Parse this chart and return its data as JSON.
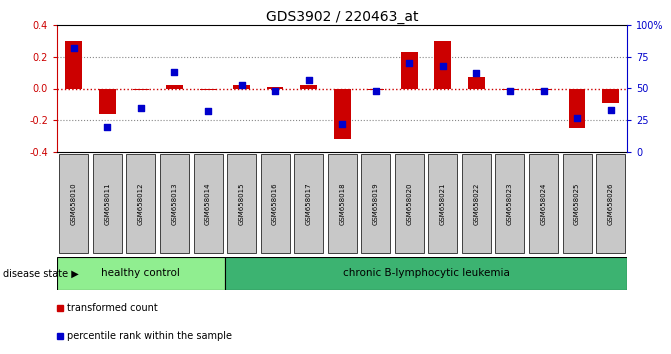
{
  "title": "GDS3902 / 220463_at",
  "samples": [
    "GSM658010",
    "GSM658011",
    "GSM658012",
    "GSM658013",
    "GSM658014",
    "GSM658015",
    "GSM658016",
    "GSM658017",
    "GSM658018",
    "GSM658019",
    "GSM658020",
    "GSM658021",
    "GSM658022",
    "GSM658023",
    "GSM658024",
    "GSM658025",
    "GSM658026"
  ],
  "red_bars": [
    0.3,
    -0.16,
    -0.01,
    0.02,
    -0.01,
    0.02,
    0.01,
    0.02,
    -0.32,
    -0.01,
    0.23,
    0.3,
    0.07,
    -0.01,
    -0.01,
    -0.25,
    -0.09
  ],
  "blue_dots_pct": [
    82,
    20,
    35,
    63,
    32,
    53,
    48,
    57,
    22,
    48,
    70,
    68,
    62,
    48,
    48,
    27,
    33
  ],
  "healthy_count": 5,
  "ylim": [
    -0.4,
    0.4
  ],
  "y2lim": [
    0,
    100
  ],
  "yticks": [
    -0.4,
    -0.2,
    0.0,
    0.2,
    0.4
  ],
  "y2ticks": [
    0,
    25,
    50,
    75,
    100
  ],
  "bar_color": "#CC0000",
  "dot_color": "#0000CC",
  "grid_color": "#888888",
  "zero_line_color": "#CC0000",
  "healthy_color": "#90EE90",
  "leukemia_color": "#3CB371",
  "bg_color": "#FFFFFF",
  "tick_bg_color": "#C8C8C8",
  "legend_bar_label": "transformed count",
  "legend_dot_label": "percentile rank within the sample",
  "disease_state_label": "disease state",
  "healthy_label": "healthy control",
  "leukemia_label": "chronic B-lymphocytic leukemia"
}
